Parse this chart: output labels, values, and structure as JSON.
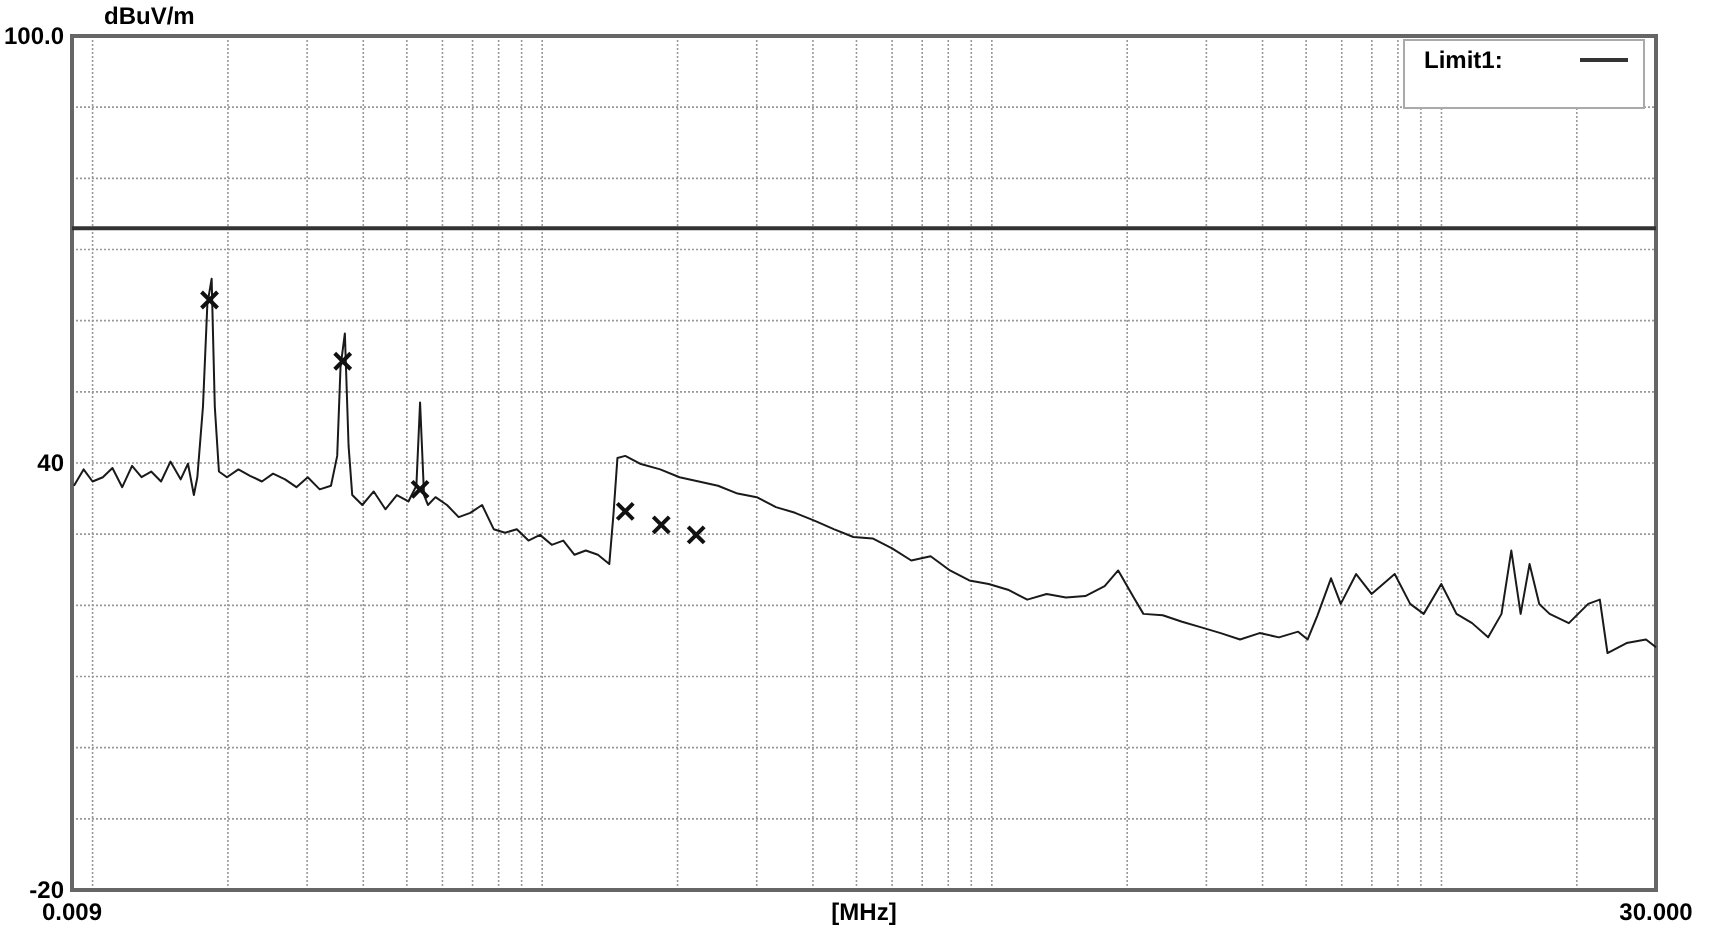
{
  "chart_data": {
    "type": "line",
    "xlabel": "[MHz]",
    "ylabel": "dBuV/m",
    "log": "x",
    "grid": true,
    "legend": "top right",
    "xlim": [
      0.009,
      30
    ],
    "ylim": [
      -20,
      100
    ],
    "xticks": [
      {
        "value": 0.009,
        "label": "0.009"
      },
      {
        "value": 0.01,
        "label": null
      },
      {
        "value": 0.02,
        "label": null
      },
      {
        "value": 0.03,
        "label": null
      },
      {
        "value": 0.04,
        "label": null
      },
      {
        "value": 0.05,
        "label": null
      },
      {
        "value": 0.06,
        "label": null
      },
      {
        "value": 0.07,
        "label": null
      },
      {
        "value": 0.08,
        "label": null
      },
      {
        "value": 0.09,
        "label": null
      },
      {
        "value": 0.1,
        "label": null
      },
      {
        "value": 0.2,
        "label": null
      },
      {
        "value": 0.3,
        "label": null
      },
      {
        "value": 0.4,
        "label": null
      },
      {
        "value": 0.5,
        "label": null
      },
      {
        "value": 0.6,
        "label": null
      },
      {
        "value": 0.7,
        "label": null
      },
      {
        "value": 0.8,
        "label": null
      },
      {
        "value": 0.9,
        "label": null
      },
      {
        "value": 1,
        "label": null
      },
      {
        "value": 2,
        "label": null
      },
      {
        "value": 3,
        "label": null
      },
      {
        "value": 4,
        "label": null
      },
      {
        "value": 5,
        "label": null
      },
      {
        "value": 6,
        "label": null
      },
      {
        "value": 7,
        "label": null
      },
      {
        "value": 8,
        "label": null
      },
      {
        "value": 9,
        "label": null
      },
      {
        "value": 10,
        "label": null
      },
      {
        "value": 20,
        "label": null
      },
      {
        "value": 30,
        "label": "30.000"
      }
    ],
    "yticks": [
      {
        "value": 100,
        "label": "100.0"
      },
      {
        "value": 90,
        "label": null
      },
      {
        "value": 80,
        "label": null
      },
      {
        "value": 70,
        "label": null
      },
      {
        "value": 60,
        "label": null
      },
      {
        "value": 50,
        "label": null
      },
      40,
      {
        "value": 30,
        "label": null
      },
      {
        "value": 20,
        "label": null
      },
      {
        "value": 10,
        "label": null
      },
      {
        "value": 0,
        "label": null
      },
      {
        "value": -10,
        "label": null
      },
      -20
    ],
    "series": [
      {
        "color": "#1a1a1a",
        "x": [
          0.00909,
          0.00955,
          0.01,
          0.01054,
          0.01107,
          0.01164,
          0.01224,
          0.01285,
          0.0135,
          0.0142,
          0.0149,
          0.0157,
          0.0163,
          0.0168,
          0.0171,
          0.0176,
          0.018,
          0.0184,
          0.0187,
          0.0191,
          0.0199,
          0.0211,
          0.0224,
          0.0238,
          0.0252,
          0.0268,
          0.0284,
          0.0301,
          0.032,
          0.0339,
          0.035,
          0.0356,
          0.0364,
          0.0371,
          0.0378,
          0.0398,
          0.0422,
          0.0448,
          0.0475,
          0.0504,
          0.0525,
          0.0535,
          0.0546,
          0.0557,
          0.0579,
          0.0614,
          0.0652,
          0.0692,
          0.0735,
          0.078,
          0.0827,
          0.0878,
          0.0932,
          0.0989,
          0.105,
          0.1114,
          0.118,
          0.125,
          0.133,
          0.141,
          0.144,
          0.147,
          0.153,
          0.165,
          0.183,
          0.202,
          0.223,
          0.246,
          0.272,
          0.3,
          0.331,
          0.365,
          0.403,
          0.445,
          0.492,
          0.543,
          0.6,
          0.662,
          0.731,
          0.807,
          0.891,
          0.984,
          1.086,
          1.199,
          1.324,
          1.462,
          1.614,
          1.782,
          1.91,
          2.068,
          2.173,
          2.399,
          2.649,
          2.924,
          3.228,
          3.565,
          3.94,
          4.35,
          4.8,
          5.04,
          5.3,
          5.68,
          5.97,
          6.46,
          6.99,
          7.87,
          8.52,
          9.13,
          9.99,
          10.8,
          11.7,
          12.7,
          13.6,
          14.3,
          15.0,
          15.7,
          16.5,
          17.4,
          19.2,
          21.2,
          22.5,
          23.4,
          25.8,
          28.5,
          30.0
        ],
        "values": [
          36.8,
          39.1,
          37.4,
          38.0,
          39.3,
          36.6,
          39.6,
          38.0,
          38.8,
          37.4,
          40.2,
          37.7,
          39.9,
          35.5,
          38.0,
          47.9,
          62.3,
          65.9,
          47.9,
          38.8,
          38.0,
          39.1,
          38.2,
          37.4,
          38.5,
          37.7,
          36.6,
          38.0,
          36.3,
          36.8,
          41.0,
          53.5,
          58.2,
          42.4,
          35.5,
          34.1,
          36.0,
          33.5,
          35.5,
          34.6,
          36.8,
          48.5,
          35.5,
          34.1,
          35.2,
          34.1,
          32.4,
          33.0,
          34.1,
          30.7,
          30.2,
          30.7,
          29.1,
          29.9,
          28.5,
          29.1,
          27.1,
          27.7,
          27.1,
          25.8,
          32.7,
          40.7,
          41.0,
          39.9,
          39.1,
          38.0,
          37.4,
          36.8,
          35.7,
          35.2,
          33.8,
          33.0,
          31.9,
          30.7,
          29.6,
          29.4,
          28.0,
          26.3,
          26.9,
          24.9,
          23.5,
          23.0,
          22.2,
          20.8,
          21.6,
          21.1,
          21.3,
          22.7,
          24.9,
          21.1,
          18.8,
          18.6,
          17.7,
          16.9,
          16.1,
          15.2,
          16.1,
          15.5,
          16.3,
          15.2,
          18.6,
          23.8,
          20.2,
          24.4,
          21.6,
          24.4,
          20.2,
          18.8,
          23.0,
          18.8,
          17.5,
          15.5,
          18.8,
          27.7,
          18.8,
          25.8,
          20.2,
          18.8,
          17.5,
          20.2,
          20.8,
          13.3,
          14.7,
          15.2,
          14.1
        ]
      },
      {
        "name": "Limit1:",
        "color": "#333333",
        "x": [
          0.009,
          30
        ],
        "values": [
          73,
          73
        ]
      },
      {
        "type": "scatter",
        "marker": "cross",
        "color": "#111111",
        "x": [
          0.0182,
          0.036,
          0.0535,
          0.153,
          0.184,
          0.22
        ],
        "values": [
          62.9,
          54.3,
          36.3,
          33.2,
          31.3,
          29.9
        ]
      }
    ]
  }
}
